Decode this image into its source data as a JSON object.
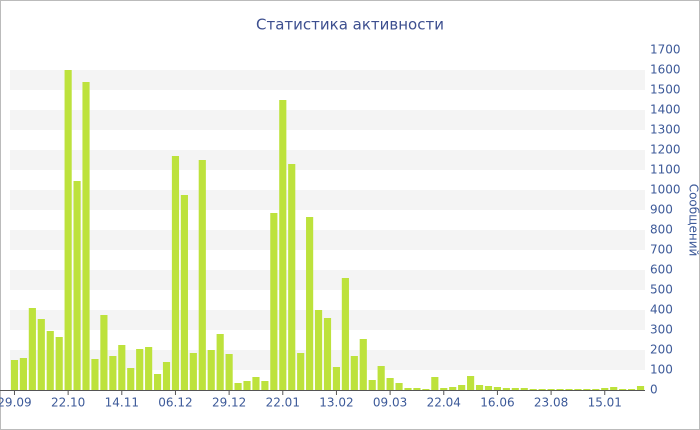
{
  "chart_data": {
    "type": "bar",
    "title": "Статистика активности",
    "y_axis_label": "Сообщений",
    "categories": [
      "29.09",
      null,
      null,
      null,
      null,
      null,
      "22.10",
      null,
      null,
      null,
      null,
      null,
      "14.11",
      null,
      null,
      null,
      null,
      null,
      "06.12",
      null,
      null,
      null,
      null,
      null,
      "29.12",
      null,
      null,
      null,
      null,
      null,
      "22.01",
      null,
      null,
      null,
      null,
      null,
      "13.02",
      null,
      null,
      null,
      null,
      null,
      "09.03",
      null,
      null,
      null,
      null,
      null,
      "22.04",
      null,
      null,
      null,
      null,
      null,
      "16.06",
      null,
      null,
      null,
      null,
      null,
      "23.08",
      null,
      null,
      null,
      null,
      null,
      "15.01",
      null,
      null,
      null,
      null
    ],
    "values": [
      150,
      160,
      410,
      355,
      295,
      265,
      1600,
      1045,
      1540,
      155,
      375,
      170,
      225,
      110,
      205,
      215,
      80,
      140,
      1170,
      975,
      185,
      1150,
      200,
      280,
      180,
      35,
      45,
      65,
      45,
      885,
      1450,
      1130,
      185,
      865,
      400,
      360,
      115,
      560,
      170,
      255,
      50,
      120,
      60,
      35,
      10,
      10,
      5,
      65,
      10,
      15,
      25,
      70,
      25,
      20,
      15,
      10,
      10,
      10,
      5,
      5,
      5,
      5,
      5,
      5,
      5,
      5,
      10,
      15,
      5,
      5,
      20
    ],
    "color": "#bde23c",
    "ylim": [
      0,
      1700
    ],
    "yticks": [
      0,
      100,
      200,
      300,
      400,
      500,
      600,
      700,
      800,
      900,
      1000,
      1100,
      1200,
      1300,
      1400,
      1500,
      1600,
      1700
    ],
    "y_axis_side": "right",
    "grid_bands": true
  }
}
